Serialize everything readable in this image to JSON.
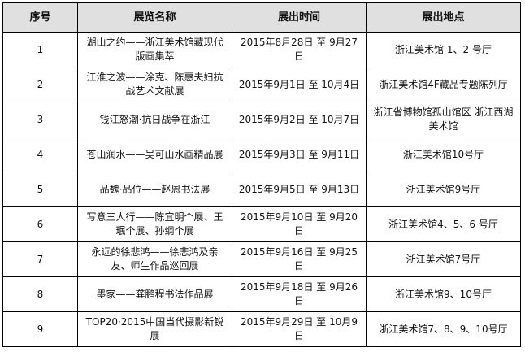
{
  "table": {
    "header": [
      "序号",
      "展览名称",
      "展出时间",
      "展出地点"
    ],
    "rows": [
      [
        "1",
        "湖山之约——浙江美术馆藏现代版画集萃",
        "2015年8月28日 至 9月27日",
        "浙江美术馆 1、2 号厅"
      ],
      [
        "2",
        "江淮之波——涂克、陈惠夫妇抗战艺术文献展",
        "2015年9月1日 至 10月4日",
        "浙江美术馆4F藏品专题陈列厅"
      ],
      [
        "3",
        "钱江怒潮·抗日战争在浙江",
        "2015年9月2日 至 10月7日",
        "浙江省博物馆孤山馆区 浙江西湖美术馆"
      ],
      [
        "4",
        "苍山润水——吴可山水画精品展",
        "2015年9月3日 至 9月11日",
        "浙江美术馆10号厅"
      ],
      [
        "5",
        "品魏·品位——赵恩书法展",
        "2015年9月5日 至 9月13日",
        "浙江美术馆9号厅"
      ],
      [
        "6",
        "写意三人行——陈宜明个展、王珉个展、孙纲个展",
        "2015年9月10日 至 9月20日",
        "浙江美术馆4、5、6 号厅"
      ],
      [
        "7",
        "永远的徐悲鸿——徐悲鸿及亲友、师生作品巡回展",
        "2015年9月16日 至 9月25日",
        "浙江美术馆7号厅"
      ],
      [
        "8",
        "墨家——龚鹏程书法作品展",
        "2015年9月18日 至 9月26日",
        "浙江美术馆9、10号厅"
      ],
      [
        "9",
        "TOP20·2015中国当代摄影新锐展",
        "2015年9月29日 至 10月9日",
        "浙江美术馆7、8、9、10号厅"
      ]
    ]
  }
}
